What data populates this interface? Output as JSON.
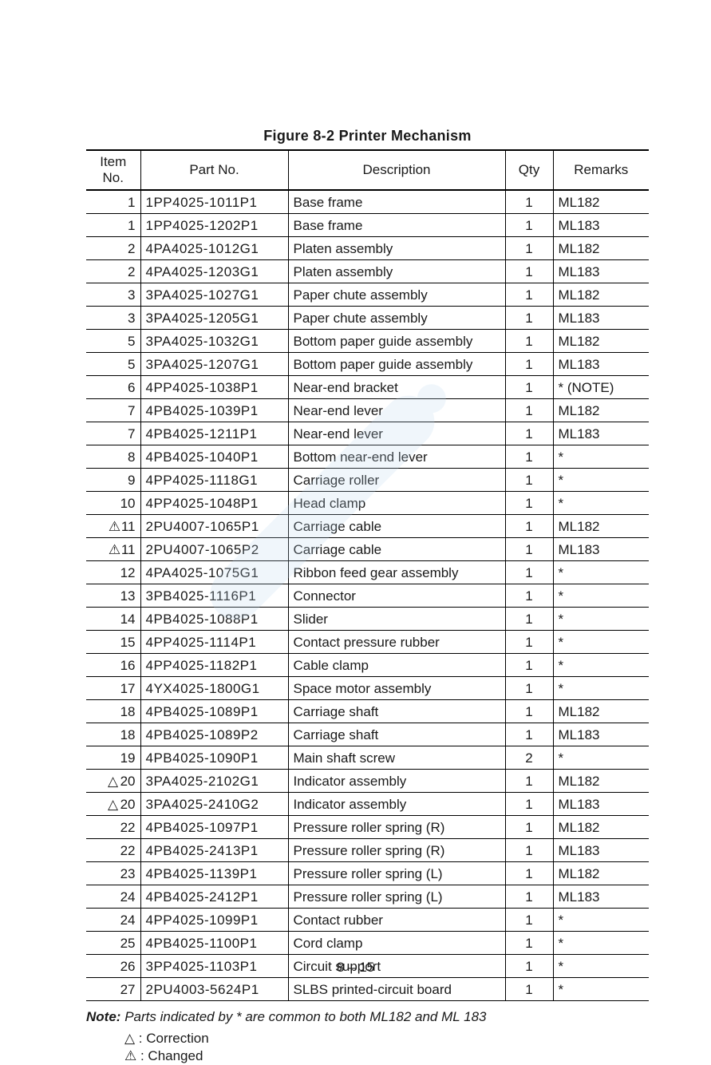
{
  "caption": "Figure 8-2   Printer Mechanism",
  "columns": [
    "Item No.",
    "Part No.",
    "Description",
    "Qty",
    "Remarks"
  ],
  "rows": [
    {
      "mark": "",
      "item": "1",
      "part": "1PP4025-1011P1",
      "desc": "Base frame",
      "qty": "1",
      "rem": "ML182"
    },
    {
      "mark": "",
      "item": "1",
      "part": "1PP4025-1202P1",
      "desc": "Base frame",
      "qty": "1",
      "rem": "ML183"
    },
    {
      "mark": "",
      "item": "2",
      "part": "4PA4025-1012G1",
      "desc": "Platen assembly",
      "qty": "1",
      "rem": "ML182"
    },
    {
      "mark": "",
      "item": "2",
      "part": "4PA4025-1203G1",
      "desc": "Platen assembly",
      "qty": "1",
      "rem": "ML183"
    },
    {
      "mark": "",
      "item": "3",
      "part": "3PA4025-1027G1",
      "desc": "Paper chute assembly",
      "qty": "1",
      "rem": "ML182"
    },
    {
      "mark": "",
      "item": "3",
      "part": "3PA4025-1205G1",
      "desc": "Paper chute assembly",
      "qty": "1",
      "rem": "ML183"
    },
    {
      "mark": "",
      "item": "5",
      "part": "3PA4025-1032G1",
      "desc": "Bottom paper guide assembly",
      "qty": "1",
      "rem": "ML182"
    },
    {
      "mark": "",
      "item": "5",
      "part": "3PA4025-1207G1",
      "desc": "Bottom paper guide assembly",
      "qty": "1",
      "rem": "ML183"
    },
    {
      "mark": "",
      "item": "6",
      "part": "4PP4025-1038P1",
      "desc": "Near-end bracket",
      "qty": "1",
      "rem": "* (NOTE)"
    },
    {
      "mark": "",
      "item": "7",
      "part": "4PB4025-1039P1",
      "desc": "Near-end lever",
      "qty": "1",
      "rem": "ML182"
    },
    {
      "mark": "",
      "item": "7",
      "part": "4PB4025-1211P1",
      "desc": "Near-end lever",
      "qty": "1",
      "rem": "ML183"
    },
    {
      "mark": "",
      "item": "8",
      "part": "4PB4025-1040P1",
      "desc": "Bottom near-end lever",
      "qty": "1",
      "rem": "*"
    },
    {
      "mark": "",
      "item": "9",
      "part": "4PP4025-1118G1",
      "desc": "Carriage roller",
      "qty": "1",
      "rem": "*"
    },
    {
      "mark": "",
      "item": "10",
      "part": "4PP4025-1048P1",
      "desc": "Head clamp",
      "qty": "1",
      "rem": "*"
    },
    {
      "mark": "⚠",
      "item": "11",
      "part": "2PU4007-1065P1",
      "desc": "Carriage cable",
      "qty": "1",
      "rem": "ML182"
    },
    {
      "mark": "⚠",
      "item": "11",
      "part": "2PU4007-1065P2",
      "desc": "Carriage cable",
      "qty": "1",
      "rem": "ML183"
    },
    {
      "mark": "",
      "item": "12",
      "part": "4PA4025-1075G1",
      "desc": "Ribbon feed gear assembly",
      "qty": "1",
      "rem": "*"
    },
    {
      "mark": "",
      "item": "13",
      "part": "3PB4025-1116P1",
      "desc": "Connector",
      "qty": "1",
      "rem": "*"
    },
    {
      "mark": "",
      "item": "14",
      "part": "4PB4025-1088P1",
      "desc": "Slider",
      "qty": "1",
      "rem": "*"
    },
    {
      "mark": "",
      "item": "15",
      "part": "4PP4025-1114P1",
      "desc": "Contact pressure rubber",
      "qty": "1",
      "rem": "*"
    },
    {
      "mark": "",
      "item": "16",
      "part": "4PP4025-1182P1",
      "desc": "Cable clamp",
      "qty": "1",
      "rem": "*"
    },
    {
      "mark": "",
      "item": "17",
      "part": "4YX4025-1800G1",
      "desc": "Space motor assembly",
      "qty": "1",
      "rem": "*"
    },
    {
      "mark": "",
      "item": "18",
      "part": "4PB4025-1089P1",
      "desc": "Carriage shaft",
      "qty": "1",
      "rem": "ML182"
    },
    {
      "mark": "",
      "item": "18",
      "part": "4PB4025-1089P2",
      "desc": "Carriage shaft",
      "qty": "1",
      "rem": "ML183"
    },
    {
      "mark": "",
      "item": "19",
      "part": "4PB4025-1090P1",
      "desc": "Main shaft screw",
      "qty": "2",
      "rem": "*"
    },
    {
      "mark": "△",
      "item": "20",
      "part": "3PA4025-2102G1",
      "desc": "Indicator assembly",
      "qty": "1",
      "rem": "ML182"
    },
    {
      "mark": "△",
      "item": "20",
      "part": "3PA4025-2410G2",
      "desc": "Indicator assembly",
      "qty": "1",
      "rem": "ML183"
    },
    {
      "mark": "",
      "item": "22",
      "part": "4PB4025-1097P1",
      "desc": "Pressure roller spring (R)",
      "qty": "1",
      "rem": "ML182"
    },
    {
      "mark": "",
      "item": "22",
      "part": "4PB4025-2413P1",
      "desc": "Pressure roller spring (R)",
      "qty": "1",
      "rem": "ML183"
    },
    {
      "mark": "",
      "item": "23",
      "part": "4PB4025-1139P1",
      "desc": "Pressure roller spring (L)",
      "qty": "1",
      "rem": "ML182"
    },
    {
      "mark": "",
      "item": "24",
      "part": "4PB4025-2412P1",
      "desc": "Pressure roller spring (L)",
      "qty": "1",
      "rem": "ML183"
    },
    {
      "mark": "",
      "item": "24",
      "part": "4PP4025-1099P1",
      "desc": "Contact rubber",
      "qty": "1",
      "rem": "*"
    },
    {
      "mark": "",
      "item": "25",
      "part": "4PB4025-1100P1",
      "desc": "Cord clamp",
      "qty": "1",
      "rem": "*"
    },
    {
      "mark": "",
      "item": "26",
      "part": "3PP4025-1103P1",
      "desc": "Circuit support",
      "qty": "1",
      "rem": "*"
    },
    {
      "mark": "",
      "item": "27",
      "part": "2PU4003-5624P1",
      "desc": "SLBS printed-circuit board",
      "qty": "1",
      "rem": "*"
    }
  ],
  "note": {
    "label": "Note:",
    "text": "Parts indicated by * are common to both ML182 and ML 183"
  },
  "legend": [
    {
      "sym": "△",
      "text": ": Correction"
    },
    {
      "sym": "⚠",
      "text": ": Changed"
    }
  ],
  "page_number": "8 – 15",
  "watermark_color": "#bcd8ef"
}
